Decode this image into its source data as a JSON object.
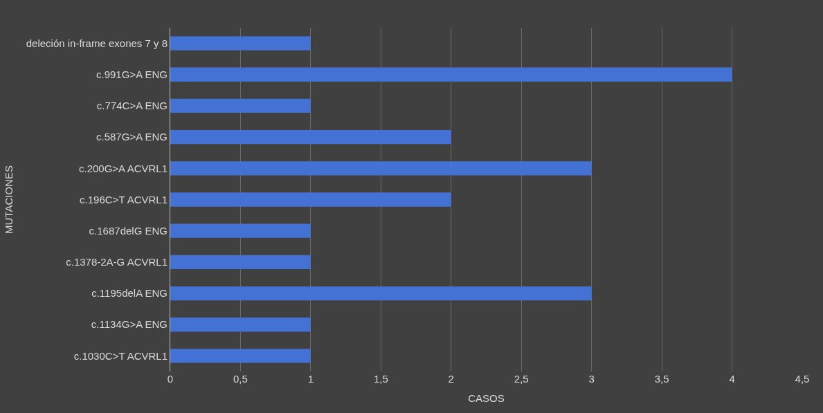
{
  "chart_data": {
    "type": "bar",
    "orientation": "horizontal",
    "xlabel": "CASOS",
    "ylabel": "MUTACIONES",
    "categories": [
      "deleción in-frame exones 7 y 8",
      "c.991G>A ENG",
      "c.774C>A ENG",
      "c.587G>A ENG",
      "c.200G>A ACVRL1",
      "c.196C>T ACVRL1",
      "c.1687delG ENG",
      "c.1378-2A-G ACVRL1",
      "c.1195delA ENG",
      "c.1134G>A ENG",
      "c.1030C>T ACVRL1"
    ],
    "values": [
      1,
      4,
      1,
      2,
      3,
      2,
      1,
      1,
      3,
      1,
      1
    ],
    "color": "#4472d4",
    "xlim": [
      0,
      4.5
    ],
    "xticks": [
      0,
      {
        "value": 0.5,
        "label": "0,5"
      },
      1,
      {
        "value": 1.5,
        "label": "1,5"
      },
      2,
      {
        "value": 2.5,
        "label": "2,5"
      },
      3,
      {
        "value": 3.5,
        "label": "3,5"
      },
      4,
      {
        "value": 4.5,
        "label": "4,5"
      }
    ],
    "grid": "x",
    "legend": false
  }
}
